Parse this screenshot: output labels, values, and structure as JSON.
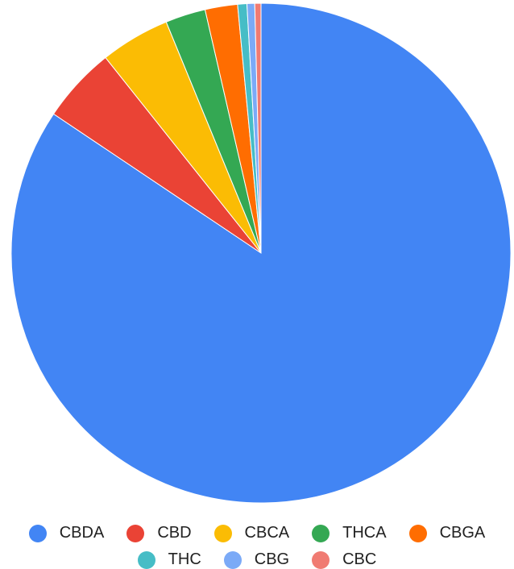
{
  "chart_data": {
    "type": "pie",
    "categories": [
      "CBDA",
      "CBD",
      "CBCA",
      "THCA",
      "CBGA",
      "THC",
      "CBG",
      "CBC"
    ],
    "values": [
      84.4,
      4.9,
      4.5,
      2.6,
      2.1,
      0.6,
      0.5,
      0.4
    ],
    "colors": [
      "#4285F4",
      "#EA4335",
      "#FBBC04",
      "#34A853",
      "#FF6D01",
      "#46BDC6",
      "#7BAAF7",
      "#F07B72"
    ],
    "start_angle": "top, clockwise",
    "legend_position": "bottom"
  }
}
